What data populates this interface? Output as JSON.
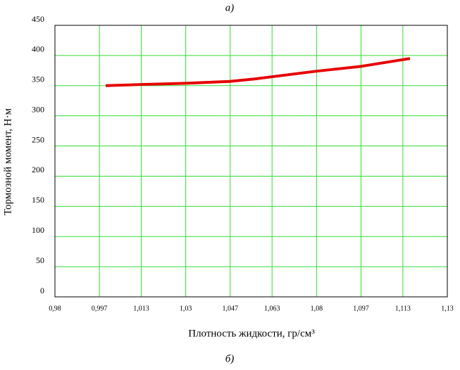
{
  "chart_data": {
    "type": "line",
    "title": "а)",
    "caption": "б)",
    "x_label": "Плотность жидкости, гр/см³",
    "y_label": "Тормозной момент, Н·м",
    "x": [
      0.9994,
      1.0134,
      1.03,
      1.0468,
      1.056,
      1.08,
      1.097,
      1.1157
    ],
    "series": [
      {
        "name": "Тормозной момент",
        "color": "#e60000",
        "values": [
          350,
          352,
          354,
          357,
          361,
          374,
          382,
          395
        ]
      }
    ],
    "xlim": [
      0.98,
      1.13
    ],
    "xticks": [
      {
        "value": 0.98,
        "label": "0,98"
      },
      {
        "value": 0.997,
        "label": "0,997"
      },
      {
        "value": 1.013,
        "label": "1,013"
      },
      {
        "value": 1.03,
        "label": "1,03"
      },
      {
        "value": 1.047,
        "label": "1,047"
      },
      {
        "value": 1.063,
        "label": "1,063"
      },
      {
        "value": 1.08,
        "label": "1,08"
      },
      {
        "value": 1.097,
        "label": "1,097"
      },
      {
        "value": 1.113,
        "label": "1,113"
      },
      {
        "value": 1.13,
        "label": "1,13"
      }
    ],
    "ylim": [
      0,
      450
    ],
    "yticks": [
      0,
      50,
      100,
      150,
      200,
      250,
      300,
      350,
      400,
      450
    ],
    "grid": true,
    "grid_color": "#33dd33"
  }
}
